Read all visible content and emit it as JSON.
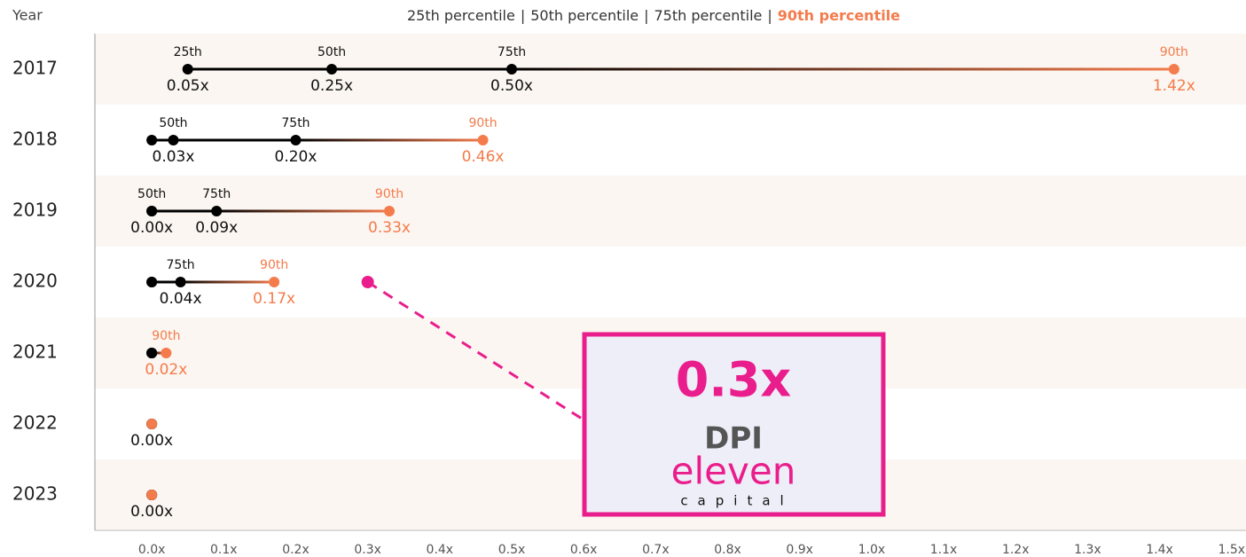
{
  "chart_data": {
    "type": "dot_range",
    "year_header": "Year",
    "legend_separator": "|",
    "categories": [
      "2017",
      "2018",
      "2019",
      "2020",
      "2021",
      "2022",
      "2023"
    ],
    "series": [
      {
        "name": "25th percentile",
        "color": "#000000",
        "values": [
          0.05,
          0,
          0,
          0,
          0,
          0,
          0
        ],
        "value_labels": [
          "0.05x",
          null,
          null,
          null,
          null,
          "0.00x",
          "0.00x"
        ],
        "point_tags": [
          "25th",
          null,
          null,
          null,
          null,
          null,
          null
        ]
      },
      {
        "name": "50th percentile",
        "color": "#000000",
        "values": [
          0.25,
          0.03,
          0,
          0,
          0,
          0,
          0
        ],
        "value_labels": [
          "0.25x",
          "0.03x",
          "0.00x",
          null,
          null,
          null,
          null
        ],
        "point_tags": [
          "50th",
          "50th",
          "50th",
          null,
          null,
          null,
          null
        ]
      },
      {
        "name": "75th percentile",
        "color": "#000000",
        "values": [
          0.5,
          0.2,
          0.09,
          0.04,
          0,
          0,
          0
        ],
        "value_labels": [
          "0.50x",
          "0.20x",
          "0.09x",
          "0.04x",
          null,
          null,
          null
        ],
        "point_tags": [
          "75th",
          "75th",
          "75th",
          "75th",
          null,
          null,
          null
        ]
      },
      {
        "name": "90th percentile",
        "color": "#f47b4c",
        "values": [
          1.42,
          0.46,
          0.33,
          0.17,
          0.02,
          0,
          0
        ],
        "value_labels": [
          "1.42x",
          "0.46x",
          "0.33x",
          "0.17x",
          "0.02x",
          null,
          null
        ],
        "point_tags": [
          "90th",
          "90th",
          "90th",
          "90th",
          "90th",
          null,
          null
        ]
      }
    ],
    "xlim": [
      -0.079,
      1.52
    ],
    "xticks": [
      {
        "value": 0,
        "label": "0.0x"
      },
      {
        "value": 0.1,
        "label": "0.1x"
      },
      {
        "value": 0.2,
        "label": "0.2x"
      },
      {
        "value": 0.3,
        "label": "0.3x"
      },
      {
        "value": 0.4,
        "label": "0.4x"
      },
      {
        "value": 0.5,
        "label": "0.5x"
      },
      {
        "value": 0.6,
        "label": "0.6x"
      },
      {
        "value": 0.7,
        "label": "0.7x"
      },
      {
        "value": 0.8,
        "label": "0.8x"
      },
      {
        "value": 0.9,
        "label": "0.9x"
      },
      {
        "value": 1.0,
        "label": "1.0x"
      },
      {
        "value": 1.1,
        "label": "1.1x"
      },
      {
        "value": 1.2,
        "label": "1.2x"
      },
      {
        "value": 1.3,
        "label": "1.3x"
      },
      {
        "value": 1.4,
        "label": "1.4x"
      },
      {
        "value": 1.5,
        "label": "1.5x"
      }
    ],
    "annotation": {
      "value": 0.3,
      "category": "2020",
      "text": "0.3x",
      "label": "DPI",
      "color": "#e91e8c",
      "brand": "eleven",
      "brand_sub": "capital"
    }
  }
}
